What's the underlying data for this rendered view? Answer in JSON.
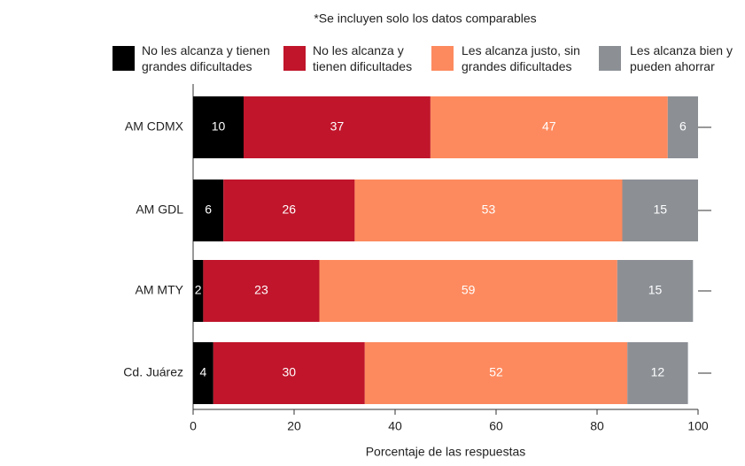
{
  "chart_data": {
    "type": "stacked-barh",
    "title": "*Se incluyen solo los datos comparables",
    "xlabel": "Porcentaje de las respuestas",
    "categories": [
      "AM CDMX",
      "AM GDL",
      "AM MTY",
      "Cd. Juárez"
    ],
    "series": [
      {
        "name": "No les alcanza y tienen grandes dificultades",
        "color": "#000000",
        "values": [
          10,
          6,
          2,
          4
        ]
      },
      {
        "name": "No les alcanza y tienen dificultades",
        "color": "#c0152b",
        "values": [
          37,
          26,
          23,
          30
        ]
      },
      {
        "name": "Les alcanza justo, sin grandes dificultades",
        "color": "#fd8a5e",
        "values": [
          47,
          53,
          59,
          52
        ]
      },
      {
        "name": "Les alcanza bien y pueden ahorrar",
        "color": "#8c9095",
        "values": [
          6,
          15,
          15,
          12
        ]
      }
    ],
    "xlim": [
      0,
      100
    ],
    "xticks": [
      0,
      20,
      40,
      60,
      80,
      100
    ]
  }
}
